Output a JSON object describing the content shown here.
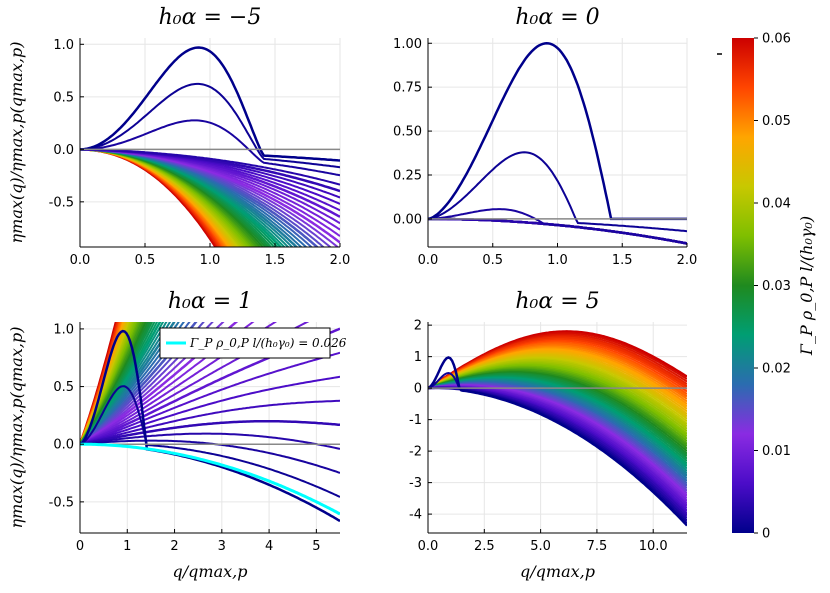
{
  "chart_data": [
    {
      "type": "line",
      "panel": "top-left",
      "title": "h₀α = −5",
      "ylabel": "ηmax(q)/ηmax,p(qmax,p)",
      "xlabel": "",
      "xlim": [
        0,
        2.0
      ],
      "ylim": [
        -0.93,
        1.06
      ],
      "xticks": [
        0.0,
        0.5,
        1.0,
        1.5,
        2.0
      ],
      "xtick_labels": [
        "0.0",
        "0.5",
        "1.0",
        "1.5",
        "2.0"
      ],
      "yticks": [
        -0.5,
        0.0,
        0.5,
        1.0
      ],
      "ytick_labels": [
        "-0.5",
        "0.0",
        "0.5",
        "1.0"
      ],
      "alpha": -5,
      "series": [
        {
          "name": "Γρl/(h₀γ₀)=0",
          "gamma": 0.0,
          "x": [
            0,
            0.5,
            1.0,
            1.4,
            1.6,
            2.0
          ],
          "y": [
            0,
            0.52,
            1.0,
            0.0,
            -0.02,
            -0.06
          ]
        },
        {
          "name": "Γρl/(h₀γ₀)=0.06",
          "gamma": 0.06,
          "x": [
            0,
            0.5,
            1.0,
            1.5,
            2.0
          ],
          "y": [
            0,
            -0.05,
            -0.22,
            -0.5,
            -0.9
          ]
        }
      ]
    },
    {
      "type": "line",
      "panel": "top-right",
      "title": "h₀α = 0",
      "ylabel": "",
      "xlabel": "",
      "xlim": [
        0,
        2.0
      ],
      "ylim": [
        -0.16,
        1.03
      ],
      "xticks": [
        0.0,
        0.5,
        1.0,
        1.5,
        2.0
      ],
      "xtick_labels": [
        "0.0",
        "0.5",
        "1.0",
        "1.5",
        "2.0"
      ],
      "yticks": [
        0.0,
        0.25,
        0.5,
        0.75,
        1.0
      ],
      "ytick_labels": [
        "0.00",
        "0.25",
        "0.50",
        "0.75",
        "1.00"
      ],
      "alpha": 0,
      "series": [
        {
          "name": "Γρl/(h₀γ₀)=0",
          "gamma": 0.0,
          "x": [
            0,
            0.5,
            1.0,
            1.414
          ],
          "y": [
            0,
            0.45,
            1.0,
            0.0
          ]
        },
        {
          "name": "Γρl/(h₀γ₀)=0.06",
          "gamma": 0.06,
          "x": [
            0,
            1.0,
            2.0
          ],
          "y": [
            0,
            -0.035,
            -0.14
          ]
        }
      ]
    },
    {
      "type": "line",
      "panel": "bottom-left",
      "title": "h₀α = 1",
      "ylabel": "ηmax(q)/ηmax,p(qmax,p)",
      "xlabel": "q/qmax,p",
      "xlim": [
        0,
        5.5
      ],
      "ylim": [
        -0.77,
        1.06
      ],
      "xticks": [
        0,
        1,
        2,
        3,
        4,
        5
      ],
      "xtick_labels": [
        "0",
        "1",
        "2",
        "3",
        "4",
        "5"
      ],
      "yticks": [
        -0.5,
        0.0,
        0.5,
        1.0
      ],
      "ytick_labels": [
        "-0.5",
        "0.0",
        "0.5",
        "1.0"
      ],
      "alpha": 1,
      "legend": {
        "position": "top-right",
        "entries": [
          "Γ_P ρ_0,P l/(h₀γ₀) = 0.026"
        ]
      },
      "highlight": {
        "gamma": 0.026,
        "color": "#00ffff"
      },
      "series": [
        {
          "name": "Γρl/(h₀γ₀)=0",
          "gamma": 0.0,
          "x": [
            0,
            1.0,
            1.414
          ],
          "y": [
            0,
            1.0,
            0.0
          ]
        },
        {
          "name": "Γρl/(h₀γ₀)=0.06",
          "gamma": 0.06,
          "x": [
            0,
            1.7,
            3.4,
            5.0,
            5.5
          ],
          "y": [
            0,
            0.07,
            0.15,
            0.07,
            0.02
          ]
        }
      ]
    },
    {
      "type": "line",
      "panel": "bottom-right",
      "title": "h₀α = 5",
      "ylabel": "",
      "xlabel": "q/qmax,p",
      "xlim": [
        0,
        11.5
      ],
      "ylim": [
        -4.6,
        2.1
      ],
      "xticks": [
        0.0,
        2.5,
        5.0,
        7.5,
        10.0
      ],
      "xtick_labels": [
        "0.0",
        "2.5",
        "5.0",
        "7.5",
        "10.0"
      ],
      "yticks": [
        -4,
        -3,
        -2,
        -1,
        0,
        1,
        2
      ],
      "ytick_labels": [
        "-4",
        "-3",
        "-2",
        "-1",
        "0",
        "1",
        "2"
      ],
      "alpha": 5,
      "series": [
        {
          "name": "Γρl/(h₀γ₀)=0",
          "gamma": 0.0,
          "x": [
            0,
            1.0,
            5.0,
            11.5
          ],
          "y": [
            0,
            1.0,
            -1.0,
            -4.4
          ]
        },
        {
          "name": "Γρl/(h₀γ₀)=0.06",
          "gamma": 0.06,
          "x": [
            0,
            3.0,
            6.0,
            9.0,
            11.5
          ],
          "y": [
            0,
            1.35,
            1.8,
            1.35,
            0.35
          ]
        }
      ]
    }
  ],
  "colorbar": {
    "label": "Γ_P ρ_0,P l/(h₀γ₀)",
    "min": 0,
    "max": 0.06,
    "ticks": [
      0,
      0.01,
      0.02,
      0.03,
      0.04,
      0.05,
      0.06
    ],
    "tick_labels": [
      "0",
      "0.01",
      "0.02",
      "0.03",
      "0.04",
      "0.05",
      "0.06"
    ],
    "colors": [
      "#00008b",
      "#4b0cc8",
      "#8a2be2",
      "#2b6cb0",
      "#009e73",
      "#1f8a1f",
      "#7fbf00",
      "#c8c800",
      "#ffa500",
      "#ff4500",
      "#cc0000"
    ]
  },
  "reference_line_color": "#888888"
}
